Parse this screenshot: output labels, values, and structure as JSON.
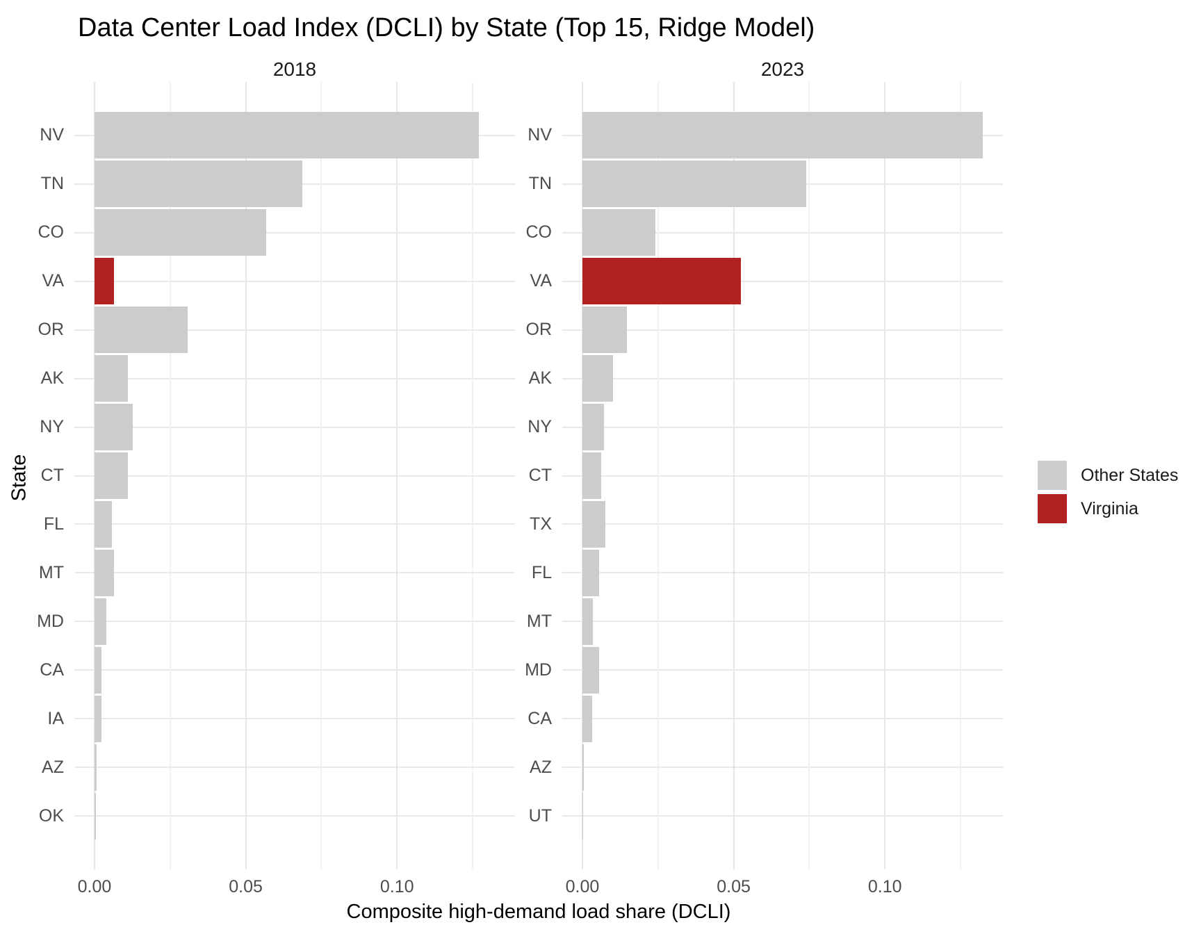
{
  "title": "Data Center Load Index (DCLI) by State (Top 15, Ridge Model)",
  "axes": {
    "x_title": "Composite high-demand load share (DCLI)",
    "y_title": "State",
    "x_tick_labels": [
      "0.00",
      "0.05",
      "0.10"
    ]
  },
  "legend": {
    "items": [
      {
        "label": "Other States",
        "color": "#cccccc"
      },
      {
        "label": "Virginia",
        "color": "#b22222"
      }
    ]
  },
  "colors": {
    "bar_default": "#cccccc",
    "bar_highlight": "#b22222",
    "grid_major": "#e6e6e6",
    "grid_minor": "#f1f1f1",
    "axis_text": "#4d4d4d",
    "facet_text": "#1a1a1a",
    "background": "#ffffff"
  },
  "chart_data": {
    "type": "bar",
    "orientation": "horizontal",
    "title": "Data Center Load Index (DCLI) by State (Top 15, Ridge Model)",
    "xlabel": "Composite high-demand load share (DCLI)",
    "ylabel": "State",
    "xlim": [
      -0.0066,
      0.1392
    ],
    "x_major_ticks": [
      0.0,
      0.05,
      0.1
    ],
    "x_minor_ticks": [
      0.025,
      0.075,
      0.125
    ],
    "grid": true,
    "legend_position": "right",
    "highlight_state": "VA",
    "highlight_label": "Virginia",
    "other_label": "Other States",
    "facets": [
      {
        "label": "2018",
        "bars": [
          {
            "state": "NV",
            "value": 0.127
          },
          {
            "state": "TN",
            "value": 0.0686
          },
          {
            "state": "CO",
            "value": 0.0568
          },
          {
            "state": "VA",
            "value": 0.0065
          },
          {
            "state": "OR",
            "value": 0.0308
          },
          {
            "state": "AK",
            "value": 0.0111
          },
          {
            "state": "NY",
            "value": 0.0126
          },
          {
            "state": "CT",
            "value": 0.0111
          },
          {
            "state": "FL",
            "value": 0.0058
          },
          {
            "state": "MT",
            "value": 0.0065
          },
          {
            "state": "MD",
            "value": 0.0039
          },
          {
            "state": "CA",
            "value": 0.0023
          },
          {
            "state": "IA",
            "value": 0.0022
          },
          {
            "state": "AZ",
            "value": 0.0006
          },
          {
            "state": "OK",
            "value": 0.0004
          }
        ]
      },
      {
        "label": "2023",
        "bars": [
          {
            "state": "NV",
            "value": 0.1324
          },
          {
            "state": "TN",
            "value": 0.074
          },
          {
            "state": "CO",
            "value": 0.0242
          },
          {
            "state": "VA",
            "value": 0.0525
          },
          {
            "state": "OR",
            "value": 0.0146
          },
          {
            "state": "AK",
            "value": 0.0101
          },
          {
            "state": "NY",
            "value": 0.0072
          },
          {
            "state": "CT",
            "value": 0.0061
          },
          {
            "state": "TX",
            "value": 0.0076
          },
          {
            "state": "FL",
            "value": 0.0055
          },
          {
            "state": "MT",
            "value": 0.0034
          },
          {
            "state": "MD",
            "value": 0.0055
          },
          {
            "state": "CA",
            "value": 0.0032
          },
          {
            "state": "AZ",
            "value": 0.0004
          },
          {
            "state": "UT",
            "value": 0.0002
          }
        ]
      }
    ]
  }
}
